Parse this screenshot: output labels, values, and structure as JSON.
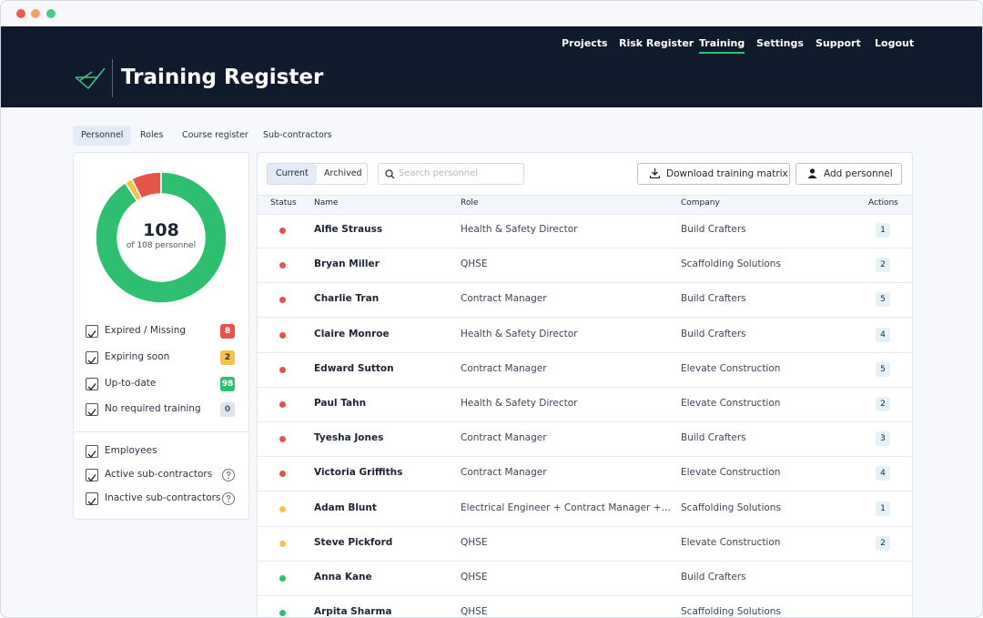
{
  "header": {
    "title": "Training Register",
    "nav": [
      "Projects",
      "Risk Register",
      "Training",
      "Settings",
      "Support",
      "Logout"
    ],
    "active_nav": 2
  },
  "tabs": {
    "items": [
      "Personnel",
      "Roles",
      "Course register",
      "Sub-contractors"
    ],
    "active": 0
  },
  "summary": {
    "total": "108",
    "caption": "of 108 personnel",
    "filters": [
      {
        "label": "Expired / Missing",
        "count": 8,
        "color": "#e5534b",
        "text_color": "#ffffff"
      },
      {
        "label": "Expiring soon",
        "count": 2,
        "color": "#f5c14b",
        "text_color": "#3a2d00"
      },
      {
        "label": "Up-to-date",
        "count": 98,
        "color": "#2fbf71",
        "text_color": "#ffffff"
      },
      {
        "label": "No required training",
        "count": 0,
        "color": "#dde3ea",
        "text_color": "#4a5568"
      }
    ],
    "groups": [
      {
        "label": "Employees",
        "help": false
      },
      {
        "label": "Active sub-contractors",
        "help": true
      },
      {
        "label": "Inactive sub-contractors",
        "help": true
      }
    ]
  },
  "toolbar": {
    "toggle": [
      "Current",
      "Archived"
    ],
    "active": 0,
    "search_placeholder": "Search personnel",
    "buttons": [
      "Download training matrix",
      "Add personnel"
    ]
  },
  "table": {
    "columns": [
      "Status",
      "Name",
      "Role",
      "Company",
      "Actions"
    ],
    "rows": [
      {
        "status_color": "#e5534b",
        "name": "Alfie Strauss",
        "role": "Health & Safety Director",
        "company": "Build Crafters",
        "actions": 1
      },
      {
        "status_color": "#e5534b",
        "name": "Bryan Miller",
        "role": "QHSE",
        "company": "Scaffolding Solutions",
        "actions": 2
      },
      {
        "status_color": "#e5534b",
        "name": "Charlie Tran",
        "role": "Contract Manager",
        "company": "Build Crafters",
        "actions": 5
      },
      {
        "status_color": "#e5534b",
        "name": "Claire Monroe",
        "role": "Health & Safety Director",
        "company": "Build Crafters",
        "actions": 4
      },
      {
        "status_color": "#e5534b",
        "name": "Edward Sutton",
        "role": "Contract Manager",
        "company": "Elevate Construction",
        "actions": 5
      },
      {
        "status_color": "#e5534b",
        "name": "Paul Tahn",
        "role": "Health & Safety Director",
        "company": "Elevate Construction",
        "actions": 2
      },
      {
        "status_color": "#e5534b",
        "name": "Tyesha Jones",
        "role": "Contract Manager",
        "company": "Build Crafters",
        "actions": 3
      },
      {
        "status_color": "#e5534b",
        "name": "Victoria Griffiths",
        "role": "Contract Manager",
        "company": "Elevate Construction",
        "actions": 4
      },
      {
        "status_color": "#f5c14b",
        "name": "Adam Blunt",
        "role": "Electrical Engineer + Contract Manager +…",
        "company": "Scaffolding Solutions",
        "actions": 1
      },
      {
        "status_color": "#f5c14b",
        "name": "Steve Pickford",
        "role": "QHSE",
        "company": "Elevate Construction",
        "actions": 2
      },
      {
        "status_color": "#2fbf71",
        "name": "Anna Kane",
        "role": "QHSE",
        "company": "Build Crafters"
      },
      {
        "status_color": "#2fbf71",
        "name": "Arpita Sharma",
        "role": "QHSE",
        "company": "Scaffolding Solutions"
      }
    ]
  }
}
